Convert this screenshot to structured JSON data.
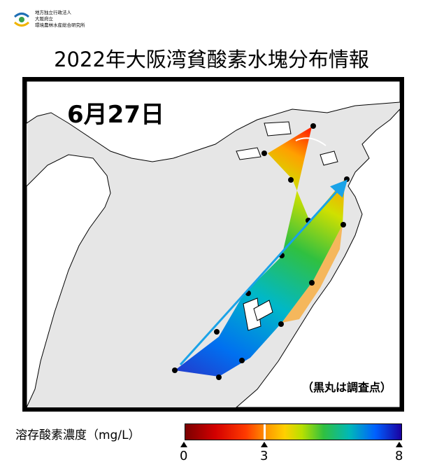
{
  "header": {
    "org_lines": [
      "地方独立行政法人",
      "大阪府立",
      "環境農林水産総合研究所"
    ],
    "title": "2022年大阪湾貧酸素水塊分布情報"
  },
  "map": {
    "date": "6月27日",
    "note": "（黒丸は調査点）"
  },
  "legend": {
    "title": "溶存酸素濃度（mg/L）",
    "ticks": [
      "0",
      "3",
      "8"
    ],
    "colors": {
      "low": "#7a0000",
      "mid": "#ffd000",
      "high": "#1a00a0",
      "land": "#ffffff",
      "sea": "#e6e6e6",
      "arrow": "#1aa3e8",
      "station": "#000000"
    }
  }
}
